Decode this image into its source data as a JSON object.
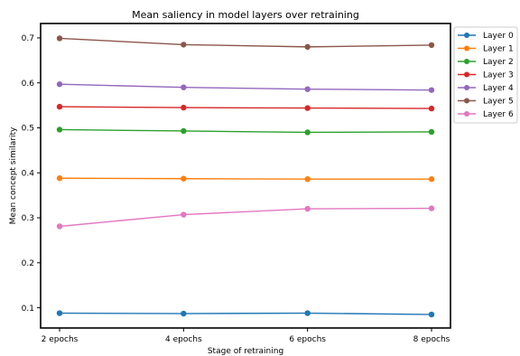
{
  "chart_data": {
    "type": "line",
    "title": "Mean saliency in model layers over retraining",
    "xlabel": "Stage of retraining",
    "ylabel": "Mean concept similarity",
    "categories": [
      "2 epochs",
      "4 epochs",
      "6 epochs",
      "8 epochs"
    ],
    "ylim": [
      0.055,
      0.732
    ],
    "yticks": [
      0.1,
      0.2,
      0.3,
      0.4,
      0.5,
      0.6,
      0.7
    ],
    "ytick_labels": [
      "0.1",
      "0.2",
      "0.3",
      "0.4",
      "0.5",
      "0.6",
      "0.7"
    ],
    "grid": false,
    "legend_position": "outside upper right",
    "series": [
      {
        "name": "Layer 0",
        "color": "#1f77b4",
        "values": [
          0.088,
          0.087,
          0.088,
          0.085
        ]
      },
      {
        "name": "Layer 1",
        "color": "#ff7f0e",
        "values": [
          0.388,
          0.387,
          0.386,
          0.386
        ]
      },
      {
        "name": "Layer 2",
        "color": "#2ca02c",
        "values": [
          0.496,
          0.493,
          0.49,
          0.491
        ]
      },
      {
        "name": "Layer 3",
        "color": "#d62728",
        "values": [
          0.547,
          0.545,
          0.544,
          0.543
        ]
      },
      {
        "name": "Layer 4",
        "color": "#9467bd",
        "values": [
          0.597,
          0.59,
          0.586,
          0.584
        ]
      },
      {
        "name": "Layer 5",
        "color": "#8c564b",
        "values": [
          0.699,
          0.685,
          0.68,
          0.684
        ]
      },
      {
        "name": "Layer 6",
        "color": "#e377c2",
        "values": [
          0.281,
          0.307,
          0.32,
          0.321
        ]
      }
    ]
  }
}
